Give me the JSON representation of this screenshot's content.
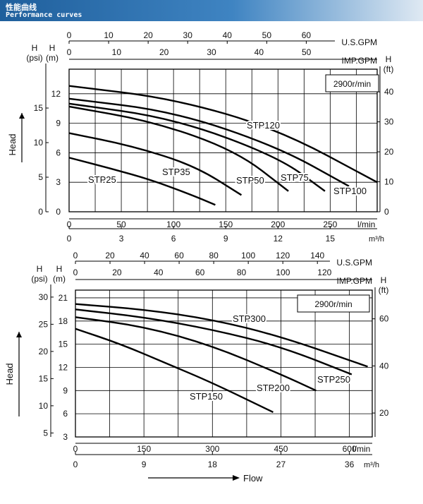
{
  "header": {
    "title_cn": "性能曲线",
    "title_en": "Performance curves"
  },
  "chart_data": [
    {
      "type": "line",
      "speed_label": "2900r/min",
      "head_axis_title": "Head",
      "y_m": {
        "unit": "H\n(m)",
        "ticks": [
          0,
          3,
          6,
          9,
          12
        ],
        "lim": [
          0,
          14.5
        ]
      },
      "y_psi": {
        "unit": "H\n(psi)",
        "ticks": [
          0,
          5,
          10,
          15
        ]
      },
      "y_ft": {
        "unit": "H\n(ft)",
        "ticks": [
          0,
          10,
          20,
          30,
          40
        ]
      },
      "x_lpm": {
        "unit": "l/min",
        "ticks": [
          0,
          50,
          100,
          150,
          200,
          250
        ],
        "lim": [
          0,
          295
        ]
      },
      "x_m3h": {
        "unit": "m³/h",
        "ticks": [
          0,
          3,
          6,
          9,
          12,
          15
        ]
      },
      "x_usgpm": {
        "unit": "U.S.GPM",
        "ticks": [
          0,
          10,
          20,
          30,
          40,
          50,
          60
        ]
      },
      "x_impgpm": {
        "unit": "IMP.GPM",
        "ticks": [
          0,
          10,
          20,
          30,
          40,
          50
        ]
      },
      "series": [
        {
          "name": "STP25",
          "x": [
            0,
            40,
            80,
            120,
            140
          ],
          "y": [
            5.5,
            4.4,
            3.2,
            1.6,
            0.7
          ]
        },
        {
          "name": "STP35",
          "x": [
            0,
            60,
            120,
            165
          ],
          "y": [
            8.0,
            6.7,
            4.7,
            1.7
          ]
        },
        {
          "name": "STP50",
          "x": [
            0,
            80,
            160,
            210
          ],
          "y": [
            10.7,
            9.2,
            6.2,
            2.1
          ]
        },
        {
          "name": "STP75",
          "x": [
            0,
            100,
            200,
            245
          ],
          "y": [
            11.0,
            9.5,
            5.6,
            2.1
          ]
        },
        {
          "name": "STP100",
          "x": [
            0,
            100,
            200,
            268
          ],
          "y": [
            11.5,
            10.2,
            6.6,
            2.6
          ]
        },
        {
          "name": "STP120",
          "x": [
            0,
            100,
            200,
            295
          ],
          "y": [
            12.8,
            11.5,
            8.4,
            3.0
          ]
        }
      ]
    },
    {
      "type": "line",
      "speed_label": "2900r/min",
      "head_axis_title": "Head",
      "flow_axis_title": "Flow",
      "y_m": {
        "unit": "H\n(m)",
        "ticks": [
          3,
          6,
          9,
          12,
          15,
          18,
          21
        ],
        "lim": [
          3,
          22
        ]
      },
      "y_psi": {
        "unit": "H\n(psi)",
        "ticks": [
          5,
          10,
          15,
          20,
          25,
          30
        ]
      },
      "y_ft": {
        "unit": "H\n(ft)",
        "ticks": [
          20,
          40,
          60
        ]
      },
      "x_lpm": {
        "unit": "l/min",
        "ticks": [
          0,
          150,
          300,
          450,
          600
        ],
        "lim": [
          0,
          650
        ]
      },
      "x_m3h": {
        "unit": "m³/h",
        "ticks": [
          0,
          9,
          18,
          27,
          36
        ]
      },
      "x_usgpm": {
        "unit": "U.S.GPM",
        "ticks": [
          0,
          20,
          40,
          60,
          80,
          100,
          120,
          140
        ]
      },
      "x_impgpm": {
        "unit": "IMP.GPM",
        "ticks": [
          0,
          20,
          40,
          60,
          80,
          100,
          120
        ]
      },
      "series": [
        {
          "name": "STP150",
          "x": [
            0,
            100,
            200,
            300,
            433
          ],
          "y": [
            17.0,
            15.0,
            12.5,
            10.0,
            6.2
          ]
        },
        {
          "name": "STP200",
          "x": [
            0,
            150,
            300,
            450,
            527
          ],
          "y": [
            18.5,
            17.3,
            14.8,
            11.1,
            9.0
          ]
        },
        {
          "name": "STP250",
          "x": [
            0,
            150,
            300,
            450,
            605
          ],
          "y": [
            19.5,
            18.5,
            16.9,
            14.7,
            11.1
          ]
        },
        {
          "name": "STP300",
          "x": [
            0,
            150,
            300,
            450,
            640
          ],
          "y": [
            20.2,
            19.5,
            18.2,
            16.0,
            12.1
          ]
        }
      ]
    }
  ]
}
